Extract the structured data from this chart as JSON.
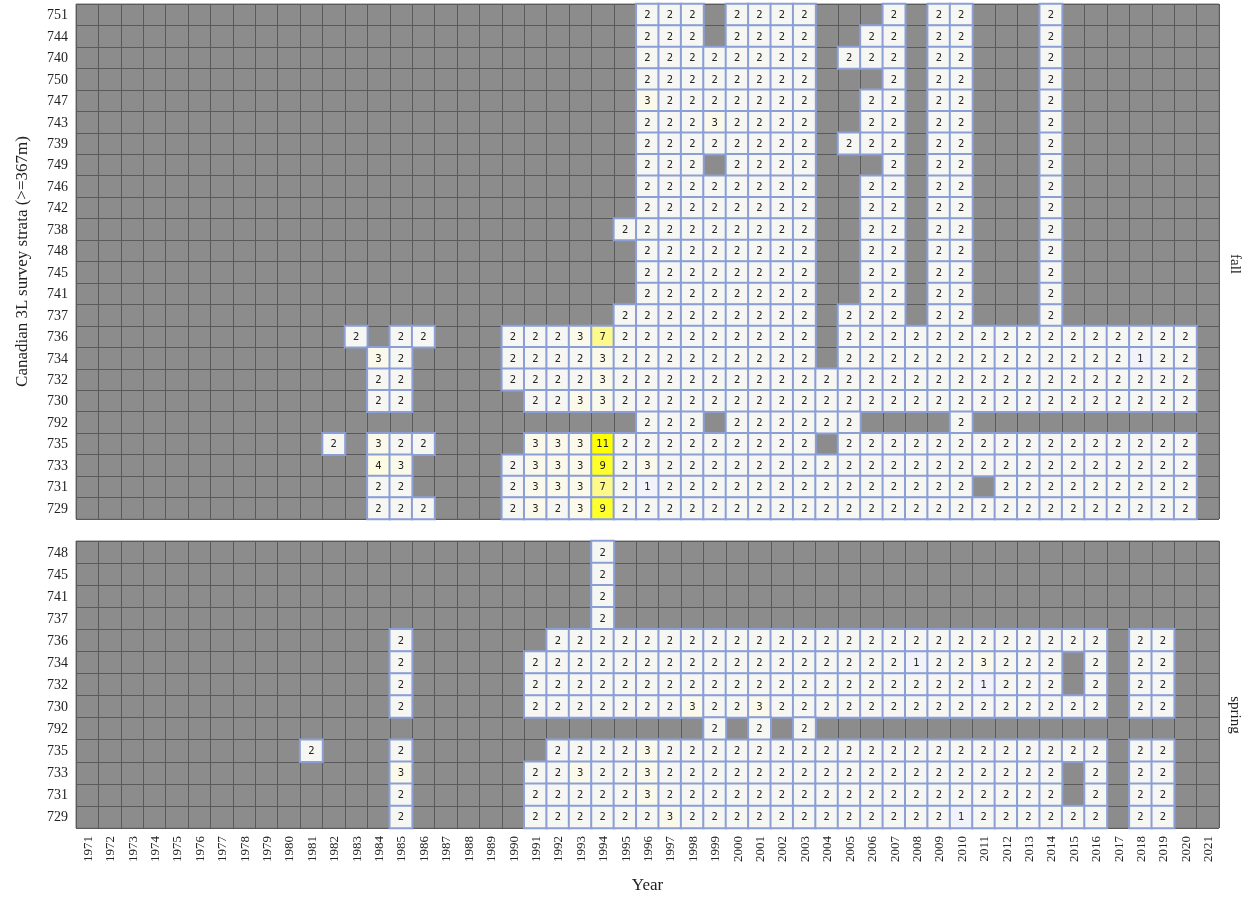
{
  "chart_data": [
    {
      "type": "heatmap",
      "y2label": "fall",
      "ylabel": "Canadian 3L survey strata (>=367m)",
      "tick_labels": "y",
      "data_labels": true,
      "categories": [
        "1971",
        "1972",
        "1973",
        "1974",
        "1975",
        "1976",
        "1977",
        "1978",
        "1979",
        "1980",
        "1981",
        "1982",
        "1983",
        "1984",
        "1985",
        "1986",
        "1987",
        "1988",
        "1989",
        "1990",
        "1991",
        "1992",
        "1993",
        "1994",
        "1995",
        "1996",
        "1997",
        "1998",
        "1999",
        "2000",
        "2001",
        "2002",
        "2003",
        "2004",
        "2005",
        "2006",
        "2007",
        "2008",
        "2009",
        "2010",
        "2011",
        "2012",
        "2013",
        "2014",
        "2015",
        "2016",
        "2017",
        "2018",
        "2019",
        "2020",
        "2021"
      ],
      "y_categories": [
        "751",
        "744",
        "740",
        "750",
        "747",
        "743",
        "739",
        "749",
        "746",
        "742",
        "738",
        "748",
        "745",
        "741",
        "737",
        "736",
        "734",
        "732",
        "730",
        "792",
        "735",
        "733",
        "731",
        "729"
      ],
      "cells": [
        [
          null,
          null,
          null,
          null,
          null,
          null,
          null,
          null,
          null,
          null,
          null,
          null,
          null,
          null,
          null,
          null,
          null,
          null,
          null,
          null,
          null,
          null,
          null,
          null,
          null,
          2,
          2,
          2,
          null,
          2,
          2,
          2,
          2,
          null,
          null,
          null,
          2,
          null,
          2,
          2,
          null,
          null,
          null,
          2,
          null,
          null,
          null,
          null,
          null,
          null,
          null
        ],
        [
          null,
          null,
          null,
          null,
          null,
          null,
          null,
          null,
          null,
          null,
          null,
          null,
          null,
          null,
          null,
          null,
          null,
          null,
          null,
          null,
          null,
          null,
          null,
          null,
          null,
          2,
          2,
          2,
          null,
          2,
          2,
          2,
          2,
          null,
          null,
          2,
          2,
          null,
          2,
          2,
          null,
          null,
          null,
          2,
          null,
          null,
          null,
          null,
          null,
          null,
          null
        ],
        [
          null,
          null,
          null,
          null,
          null,
          null,
          null,
          null,
          null,
          null,
          null,
          null,
          null,
          null,
          null,
          null,
          null,
          null,
          null,
          null,
          null,
          null,
          null,
          null,
          null,
          2,
          2,
          2,
          2,
          2,
          2,
          2,
          2,
          null,
          2,
          2,
          2,
          null,
          2,
          2,
          null,
          null,
          null,
          2,
          null,
          null,
          null,
          null,
          null,
          null,
          null
        ],
        [
          null,
          null,
          null,
          null,
          null,
          null,
          null,
          null,
          null,
          null,
          null,
          null,
          null,
          null,
          null,
          null,
          null,
          null,
          null,
          null,
          null,
          null,
          null,
          null,
          null,
          2,
          2,
          2,
          2,
          2,
          2,
          2,
          2,
          null,
          null,
          null,
          2,
          null,
          2,
          2,
          null,
          null,
          null,
          2,
          null,
          null,
          null,
          null,
          null,
          null,
          null
        ],
        [
          null,
          null,
          null,
          null,
          null,
          null,
          null,
          null,
          null,
          null,
          null,
          null,
          null,
          null,
          null,
          null,
          null,
          null,
          null,
          null,
          null,
          null,
          null,
          null,
          null,
          3,
          2,
          2,
          2,
          2,
          2,
          2,
          2,
          null,
          null,
          2,
          2,
          null,
          2,
          2,
          null,
          null,
          null,
          2,
          null,
          null,
          null,
          null,
          null,
          null,
          null
        ],
        [
          null,
          null,
          null,
          null,
          null,
          null,
          null,
          null,
          null,
          null,
          null,
          null,
          null,
          null,
          null,
          null,
          null,
          null,
          null,
          null,
          null,
          null,
          null,
          null,
          null,
          2,
          2,
          2,
          3,
          2,
          2,
          2,
          2,
          null,
          null,
          2,
          2,
          null,
          2,
          2,
          null,
          null,
          null,
          2,
          null,
          null,
          null,
          null,
          null,
          null,
          null
        ],
        [
          null,
          null,
          null,
          null,
          null,
          null,
          null,
          null,
          null,
          null,
          null,
          null,
          null,
          null,
          null,
          null,
          null,
          null,
          null,
          null,
          null,
          null,
          null,
          null,
          null,
          2,
          2,
          2,
          2,
          2,
          2,
          2,
          2,
          null,
          2,
          2,
          2,
          null,
          2,
          2,
          null,
          null,
          null,
          2,
          null,
          null,
          null,
          null,
          null,
          null,
          null
        ],
        [
          null,
          null,
          null,
          null,
          null,
          null,
          null,
          null,
          null,
          null,
          null,
          null,
          null,
          null,
          null,
          null,
          null,
          null,
          null,
          null,
          null,
          null,
          null,
          null,
          null,
          2,
          2,
          2,
          null,
          2,
          2,
          2,
          2,
          null,
          null,
          null,
          2,
          null,
          2,
          2,
          null,
          null,
          null,
          2,
          null,
          null,
          null,
          null,
          null,
          null,
          null
        ],
        [
          null,
          null,
          null,
          null,
          null,
          null,
          null,
          null,
          null,
          null,
          null,
          null,
          null,
          null,
          null,
          null,
          null,
          null,
          null,
          null,
          null,
          null,
          null,
          null,
          null,
          2,
          2,
          2,
          2,
          2,
          2,
          2,
          2,
          null,
          null,
          2,
          2,
          null,
          2,
          2,
          null,
          null,
          null,
          2,
          null,
          null,
          null,
          null,
          null,
          null,
          null
        ],
        [
          null,
          null,
          null,
          null,
          null,
          null,
          null,
          null,
          null,
          null,
          null,
          null,
          null,
          null,
          null,
          null,
          null,
          null,
          null,
          null,
          null,
          null,
          null,
          null,
          null,
          2,
          2,
          2,
          2,
          2,
          2,
          2,
          2,
          null,
          null,
          2,
          2,
          null,
          2,
          2,
          null,
          null,
          null,
          2,
          null,
          null,
          null,
          null,
          null,
          null,
          null
        ],
        [
          null,
          null,
          null,
          null,
          null,
          null,
          null,
          null,
          null,
          null,
          null,
          null,
          null,
          null,
          null,
          null,
          null,
          null,
          null,
          null,
          null,
          null,
          null,
          null,
          2,
          2,
          2,
          2,
          2,
          2,
          2,
          2,
          2,
          null,
          null,
          2,
          2,
          null,
          2,
          2,
          null,
          null,
          null,
          2,
          null,
          null,
          null,
          null,
          null,
          null,
          null
        ],
        [
          null,
          null,
          null,
          null,
          null,
          null,
          null,
          null,
          null,
          null,
          null,
          null,
          null,
          null,
          null,
          null,
          null,
          null,
          null,
          null,
          null,
          null,
          null,
          null,
          null,
          2,
          2,
          2,
          2,
          2,
          2,
          2,
          2,
          null,
          null,
          2,
          2,
          null,
          2,
          2,
          null,
          null,
          null,
          2,
          null,
          null,
          null,
          null,
          null,
          null,
          null
        ],
        [
          null,
          null,
          null,
          null,
          null,
          null,
          null,
          null,
          null,
          null,
          null,
          null,
          null,
          null,
          null,
          null,
          null,
          null,
          null,
          null,
          null,
          null,
          null,
          null,
          null,
          2,
          2,
          2,
          2,
          2,
          2,
          2,
          2,
          null,
          null,
          2,
          2,
          null,
          2,
          2,
          null,
          null,
          null,
          2,
          null,
          null,
          null,
          null,
          null,
          null,
          null
        ],
        [
          null,
          null,
          null,
          null,
          null,
          null,
          null,
          null,
          null,
          null,
          null,
          null,
          null,
          null,
          null,
          null,
          null,
          null,
          null,
          null,
          null,
          null,
          null,
          null,
          null,
          2,
          2,
          2,
          2,
          2,
          2,
          2,
          2,
          null,
          null,
          2,
          2,
          null,
          2,
          2,
          null,
          null,
          null,
          2,
          null,
          null,
          null,
          null,
          null,
          null,
          null
        ],
        [
          null,
          null,
          null,
          null,
          null,
          null,
          null,
          null,
          null,
          null,
          null,
          null,
          null,
          null,
          null,
          null,
          null,
          null,
          null,
          null,
          null,
          null,
          null,
          null,
          2,
          2,
          2,
          2,
          2,
          2,
          2,
          2,
          2,
          null,
          2,
          2,
          2,
          null,
          2,
          2,
          null,
          null,
          null,
          2,
          null,
          null,
          null,
          null,
          null,
          null,
          null
        ],
        [
          null,
          null,
          null,
          null,
          null,
          null,
          null,
          null,
          null,
          null,
          null,
          null,
          2,
          null,
          2,
          2,
          null,
          null,
          null,
          2,
          2,
          2,
          3,
          7,
          2,
          2,
          2,
          2,
          2,
          2,
          2,
          2,
          2,
          null,
          2,
          2,
          2,
          2,
          2,
          2,
          2,
          2,
          2,
          2,
          2,
          2,
          2,
          2,
          2,
          2,
          null
        ],
        [
          null,
          null,
          null,
          null,
          null,
          null,
          null,
          null,
          null,
          null,
          null,
          null,
          null,
          3,
          2,
          null,
          null,
          null,
          null,
          2,
          2,
          2,
          2,
          3,
          2,
          2,
          2,
          2,
          2,
          2,
          2,
          2,
          2,
          null,
          2,
          2,
          2,
          2,
          2,
          2,
          2,
          2,
          2,
          2,
          2,
          2,
          2,
          1,
          2,
          2,
          null
        ],
        [
          null,
          null,
          null,
          null,
          null,
          null,
          null,
          null,
          null,
          null,
          null,
          null,
          null,
          2,
          2,
          null,
          null,
          null,
          null,
          2,
          2,
          2,
          2,
          3,
          2,
          2,
          2,
          2,
          2,
          2,
          2,
          2,
          2,
          2,
          2,
          2,
          2,
          2,
          2,
          2,
          2,
          2,
          2,
          2,
          2,
          2,
          2,
          2,
          2,
          2,
          null
        ],
        [
          null,
          null,
          null,
          null,
          null,
          null,
          null,
          null,
          null,
          null,
          null,
          null,
          null,
          2,
          2,
          null,
          null,
          null,
          null,
          null,
          2,
          2,
          3,
          3,
          2,
          2,
          2,
          2,
          2,
          2,
          2,
          2,
          2,
          2,
          2,
          2,
          2,
          2,
          2,
          2,
          2,
          2,
          2,
          2,
          2,
          2,
          2,
          2,
          2,
          2,
          null
        ],
        [
          null,
          null,
          null,
          null,
          null,
          null,
          null,
          null,
          null,
          null,
          null,
          null,
          null,
          null,
          null,
          null,
          null,
          null,
          null,
          null,
          null,
          null,
          null,
          null,
          null,
          2,
          2,
          2,
          null,
          2,
          2,
          2,
          2,
          2,
          2,
          null,
          null,
          null,
          null,
          2,
          null,
          null,
          null,
          null,
          null,
          null,
          null,
          null,
          null,
          null,
          null
        ],
        [
          null,
          null,
          null,
          null,
          null,
          null,
          null,
          null,
          null,
          null,
          null,
          2,
          null,
          3,
          2,
          2,
          null,
          null,
          null,
          null,
          3,
          3,
          3,
          11,
          2,
          2,
          2,
          2,
          2,
          2,
          2,
          2,
          2,
          null,
          2,
          2,
          2,
          2,
          2,
          2,
          2,
          2,
          2,
          2,
          2,
          2,
          2,
          2,
          2,
          2,
          null
        ],
        [
          null,
          null,
          null,
          null,
          null,
          null,
          null,
          null,
          null,
          null,
          null,
          null,
          null,
          4,
          3,
          null,
          null,
          null,
          null,
          2,
          3,
          3,
          3,
          9,
          2,
          3,
          2,
          2,
          2,
          2,
          2,
          2,
          2,
          2,
          2,
          2,
          2,
          2,
          2,
          2,
          2,
          2,
          2,
          2,
          2,
          2,
          2,
          2,
          2,
          2,
          null
        ],
        [
          null,
          null,
          null,
          null,
          null,
          null,
          null,
          null,
          null,
          null,
          null,
          null,
          null,
          2,
          2,
          null,
          null,
          null,
          null,
          2,
          3,
          3,
          3,
          7,
          2,
          1,
          2,
          2,
          2,
          2,
          2,
          2,
          2,
          2,
          2,
          2,
          2,
          2,
          2,
          2,
          null,
          2,
          2,
          2,
          2,
          2,
          2,
          2,
          2,
          2,
          null
        ],
        [
          null,
          null,
          null,
          null,
          null,
          null,
          null,
          null,
          null,
          null,
          null,
          null,
          null,
          2,
          2,
          2,
          null,
          null,
          null,
          2,
          3,
          2,
          3,
          9,
          2,
          2,
          2,
          2,
          2,
          2,
          2,
          2,
          2,
          2,
          2,
          2,
          2,
          2,
          2,
          2,
          2,
          2,
          2,
          2,
          2,
          2,
          2,
          2,
          2,
          2,
          null
        ]
      ]
    },
    {
      "type": "heatmap",
      "y2label": "spring",
      "xlabel": "Year",
      "data_labels": true,
      "categories": [
        "1971",
        "1972",
        "1973",
        "1974",
        "1975",
        "1976",
        "1977",
        "1978",
        "1979",
        "1980",
        "1981",
        "1982",
        "1983",
        "1984",
        "1985",
        "1986",
        "1987",
        "1988",
        "1989",
        "1990",
        "1991",
        "1992",
        "1993",
        "1994",
        "1995",
        "1996",
        "1997",
        "1998",
        "1999",
        "2000",
        "2001",
        "2002",
        "2003",
        "2004",
        "2005",
        "2006",
        "2007",
        "2008",
        "2009",
        "2010",
        "2011",
        "2012",
        "2013",
        "2014",
        "2015",
        "2016",
        "2017",
        "2018",
        "2019",
        "2020",
        "2021"
      ],
      "y_categories": [
        "748",
        "745",
        "741",
        "737",
        "736",
        "734",
        "732",
        "730",
        "792",
        "735",
        "733",
        "731",
        "729"
      ],
      "cells": [
        [
          null,
          null,
          null,
          null,
          null,
          null,
          null,
          null,
          null,
          null,
          null,
          null,
          null,
          null,
          null,
          null,
          null,
          null,
          null,
          null,
          null,
          null,
          null,
          2,
          null,
          null,
          null,
          null,
          null,
          null,
          null,
          null,
          null,
          null,
          null,
          null,
          null,
          null,
          null,
          null,
          null,
          null,
          null,
          null,
          null,
          null,
          null,
          null,
          null,
          null,
          null
        ],
        [
          null,
          null,
          null,
          null,
          null,
          null,
          null,
          null,
          null,
          null,
          null,
          null,
          null,
          null,
          null,
          null,
          null,
          null,
          null,
          null,
          null,
          null,
          null,
          2,
          null,
          null,
          null,
          null,
          null,
          null,
          null,
          null,
          null,
          null,
          null,
          null,
          null,
          null,
          null,
          null,
          null,
          null,
          null,
          null,
          null,
          null,
          null,
          null,
          null,
          null,
          null
        ],
        [
          null,
          null,
          null,
          null,
          null,
          null,
          null,
          null,
          null,
          null,
          null,
          null,
          null,
          null,
          null,
          null,
          null,
          null,
          null,
          null,
          null,
          null,
          null,
          2,
          null,
          null,
          null,
          null,
          null,
          null,
          null,
          null,
          null,
          null,
          null,
          null,
          null,
          null,
          null,
          null,
          null,
          null,
          null,
          null,
          null,
          null,
          null,
          null,
          null,
          null,
          null
        ],
        [
          null,
          null,
          null,
          null,
          null,
          null,
          null,
          null,
          null,
          null,
          null,
          null,
          null,
          null,
          null,
          null,
          null,
          null,
          null,
          null,
          null,
          null,
          null,
          2,
          null,
          null,
          null,
          null,
          null,
          null,
          null,
          null,
          null,
          null,
          null,
          null,
          null,
          null,
          null,
          null,
          null,
          null,
          null,
          null,
          null,
          null,
          null,
          null,
          null,
          null,
          null
        ],
        [
          null,
          null,
          null,
          null,
          null,
          null,
          null,
          null,
          null,
          null,
          null,
          null,
          null,
          null,
          2,
          null,
          null,
          null,
          null,
          null,
          null,
          2,
          2,
          2,
          2,
          2,
          2,
          2,
          2,
          2,
          2,
          2,
          2,
          2,
          2,
          2,
          2,
          2,
          2,
          2,
          2,
          2,
          2,
          2,
          2,
          2,
          null,
          2,
          2,
          null,
          null
        ],
        [
          null,
          null,
          null,
          null,
          null,
          null,
          null,
          null,
          null,
          null,
          null,
          null,
          null,
          null,
          2,
          null,
          null,
          null,
          null,
          null,
          2,
          2,
          2,
          2,
          2,
          2,
          2,
          2,
          2,
          2,
          2,
          2,
          2,
          2,
          2,
          2,
          2,
          1,
          2,
          2,
          3,
          2,
          2,
          2,
          null,
          2,
          null,
          2,
          2,
          null,
          null
        ],
        [
          null,
          null,
          null,
          null,
          null,
          null,
          null,
          null,
          null,
          null,
          null,
          null,
          null,
          null,
          2,
          null,
          null,
          null,
          null,
          null,
          2,
          2,
          2,
          2,
          2,
          2,
          2,
          2,
          2,
          2,
          2,
          2,
          2,
          2,
          2,
          2,
          2,
          2,
          2,
          2,
          1,
          2,
          2,
          2,
          null,
          2,
          null,
          2,
          2,
          null,
          null
        ],
        [
          null,
          null,
          null,
          null,
          null,
          null,
          null,
          null,
          null,
          null,
          null,
          null,
          null,
          null,
          2,
          null,
          null,
          null,
          null,
          null,
          2,
          2,
          2,
          2,
          2,
          2,
          2,
          3,
          2,
          2,
          3,
          2,
          2,
          2,
          2,
          2,
          2,
          2,
          2,
          2,
          2,
          2,
          2,
          2,
          2,
          2,
          null,
          2,
          2,
          null,
          null
        ],
        [
          null,
          null,
          null,
          null,
          null,
          null,
          null,
          null,
          null,
          null,
          null,
          null,
          null,
          null,
          null,
          null,
          null,
          null,
          null,
          null,
          null,
          null,
          null,
          null,
          null,
          null,
          null,
          null,
          2,
          null,
          2,
          null,
          2,
          null,
          null,
          null,
          null,
          null,
          null,
          null,
          null,
          null,
          null,
          null,
          null,
          null,
          null,
          null,
          null,
          null,
          null
        ],
        [
          null,
          null,
          null,
          null,
          null,
          null,
          null,
          null,
          null,
          null,
          2,
          null,
          null,
          null,
          2,
          null,
          null,
          null,
          null,
          null,
          null,
          2,
          2,
          2,
          2,
          3,
          2,
          2,
          2,
          2,
          2,
          2,
          2,
          2,
          2,
          2,
          2,
          2,
          2,
          2,
          2,
          2,
          2,
          2,
          2,
          2,
          null,
          2,
          2,
          null,
          null
        ],
        [
          null,
          null,
          null,
          null,
          null,
          null,
          null,
          null,
          null,
          null,
          null,
          null,
          null,
          null,
          3,
          null,
          null,
          null,
          null,
          null,
          2,
          2,
          3,
          2,
          2,
          3,
          2,
          2,
          2,
          2,
          2,
          2,
          2,
          2,
          2,
          2,
          2,
          2,
          2,
          2,
          2,
          2,
          2,
          2,
          null,
          2,
          null,
          2,
          2,
          null,
          null
        ],
        [
          null,
          null,
          null,
          null,
          null,
          null,
          null,
          null,
          null,
          null,
          null,
          null,
          null,
          null,
          2,
          null,
          null,
          null,
          null,
          null,
          2,
          2,
          2,
          2,
          2,
          3,
          2,
          2,
          2,
          2,
          2,
          2,
          2,
          2,
          2,
          2,
          2,
          2,
          2,
          2,
          2,
          2,
          2,
          2,
          null,
          2,
          null,
          2,
          2,
          null,
          null
        ],
        [
          null,
          null,
          null,
          null,
          null,
          null,
          null,
          null,
          null,
          null,
          null,
          null,
          null,
          null,
          2,
          null,
          null,
          null,
          null,
          null,
          2,
          2,
          2,
          2,
          2,
          2,
          3,
          2,
          2,
          2,
          2,
          2,
          2,
          2,
          2,
          2,
          2,
          2,
          2,
          1,
          2,
          2,
          2,
          2,
          2,
          2,
          null,
          2,
          2,
          null,
          null
        ]
      ]
    }
  ]
}
